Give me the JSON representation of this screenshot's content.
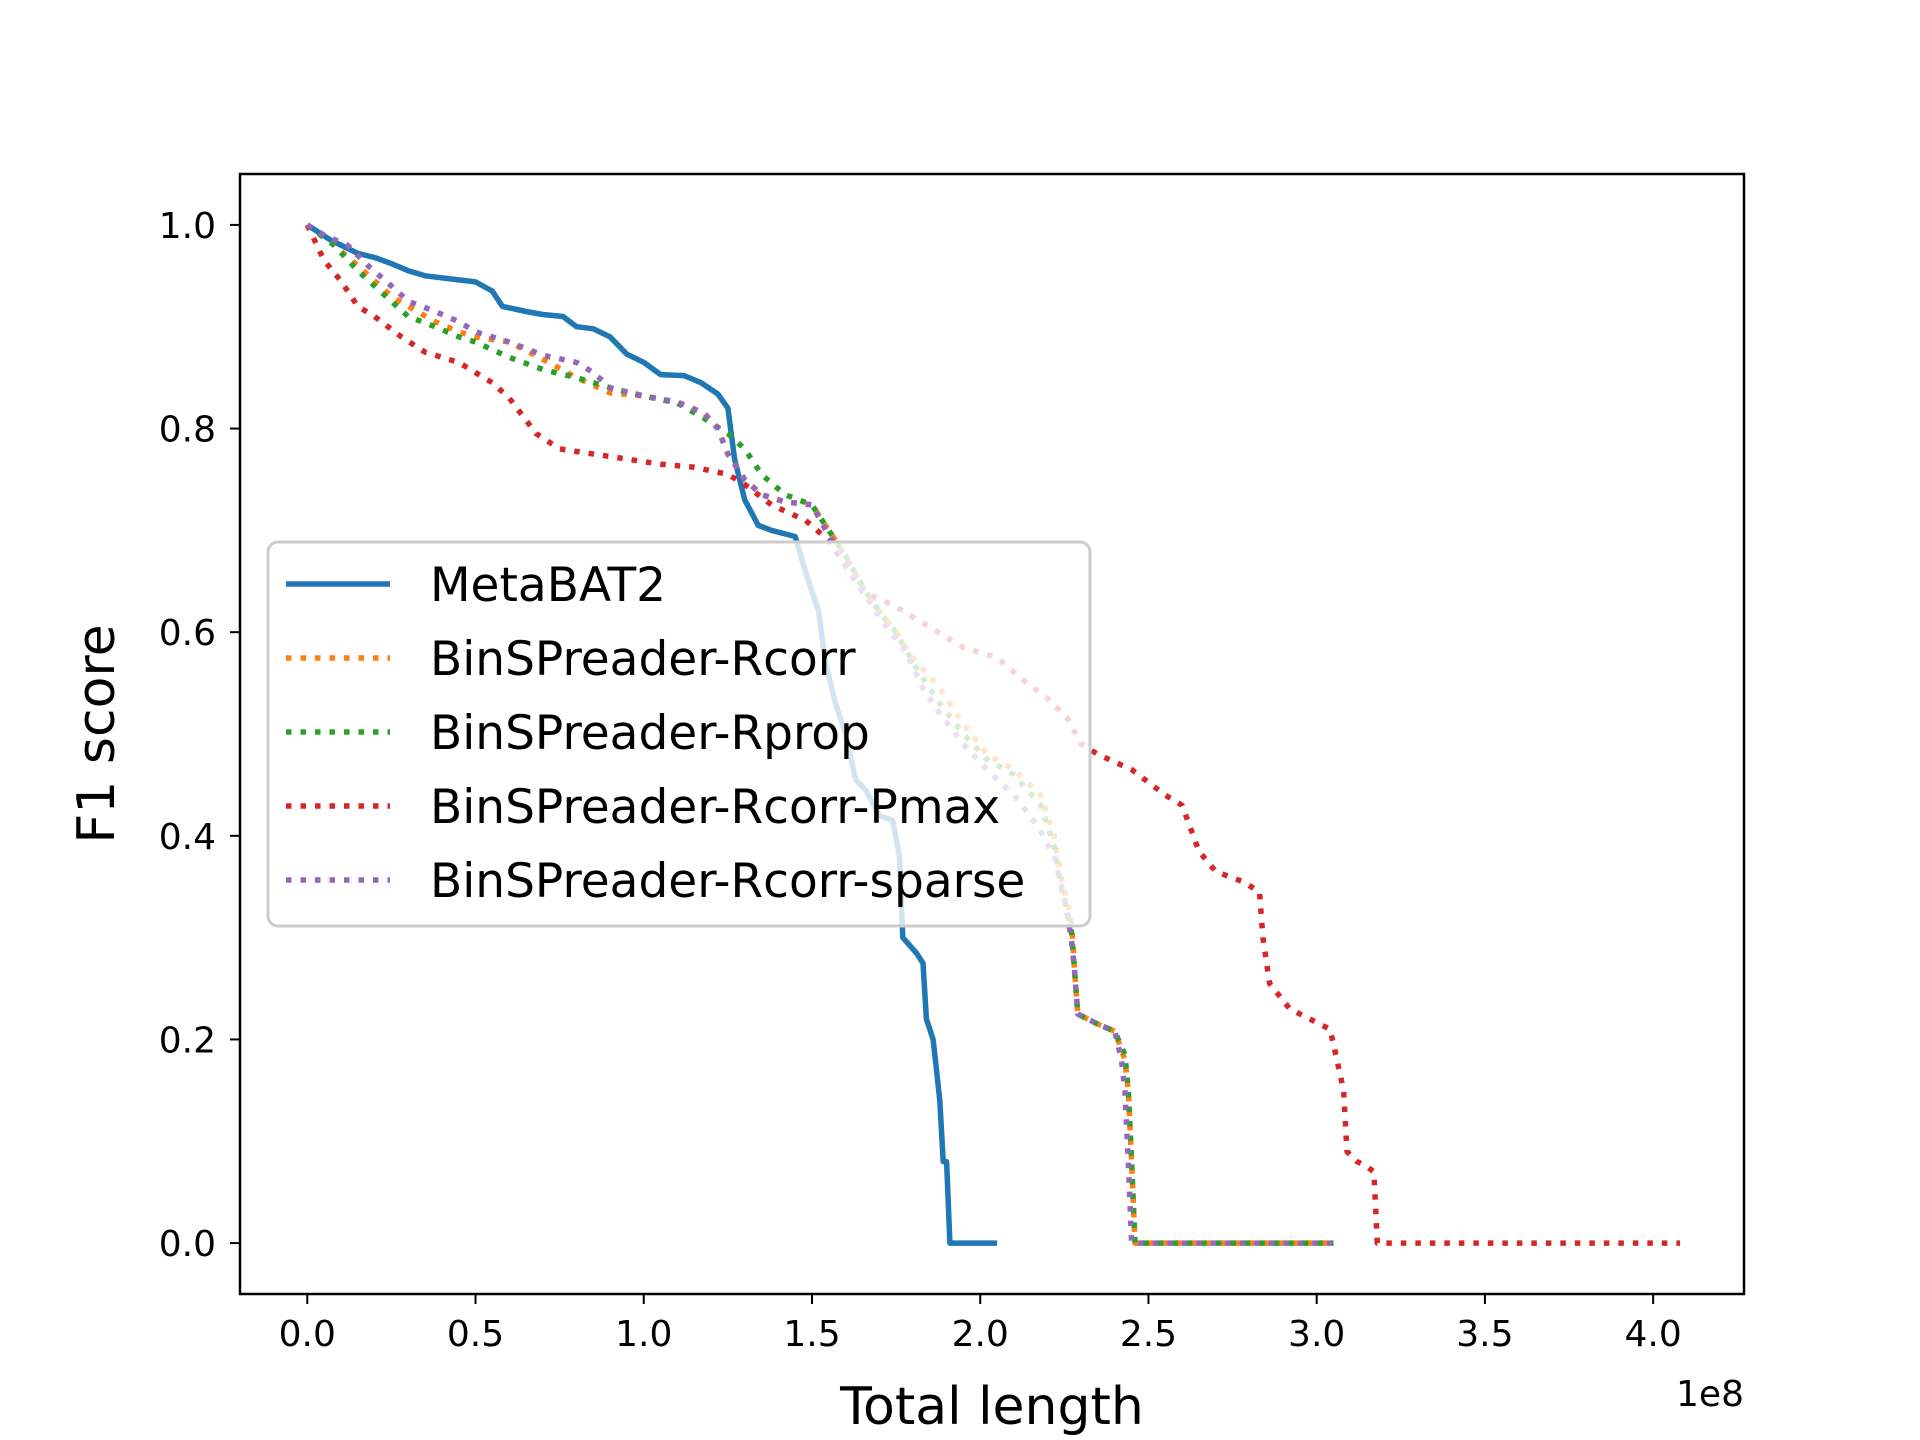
{
  "chart_data": {
    "type": "line",
    "title": "",
    "xlabel": "Total length",
    "ylabel": "F1 score",
    "x_offset_label": "1e8",
    "xlim": [
      -0.2,
      4.27
    ],
    "ylim": [
      -0.05,
      1.05
    ],
    "xticks": [
      0.0,
      0.5,
      1.0,
      1.5,
      2.0,
      2.5,
      3.0,
      3.5,
      4.0
    ],
    "xtick_labels": [
      "0.0",
      "0.5",
      "1.0",
      "1.5",
      "2.0",
      "2.5",
      "3.0",
      "3.5",
      "4.0"
    ],
    "yticks": [
      0.0,
      0.2,
      0.4,
      0.6,
      0.8,
      1.0
    ],
    "ytick_labels": [
      "0.0",
      "0.2",
      "0.4",
      "0.6",
      "0.8",
      "1.0"
    ],
    "grid": false,
    "legend_position": "center-left",
    "series": [
      {
        "name": "MetaBAT2",
        "color": "#1f77b4",
        "style": "solid",
        "points": [
          [
            0.0,
            1.0
          ],
          [
            0.07,
            0.985
          ],
          [
            0.15,
            0.972
          ],
          [
            0.2,
            0.968
          ],
          [
            0.25,
            0.962
          ],
          [
            0.3,
            0.955
          ],
          [
            0.35,
            0.95
          ],
          [
            0.45,
            0.946
          ],
          [
            0.5,
            0.944
          ],
          [
            0.55,
            0.935
          ],
          [
            0.58,
            0.92
          ],
          [
            0.65,
            0.915
          ],
          [
            0.7,
            0.912
          ],
          [
            0.76,
            0.91
          ],
          [
            0.8,
            0.9
          ],
          [
            0.85,
            0.898
          ],
          [
            0.9,
            0.89
          ],
          [
            0.95,
            0.873
          ],
          [
            1.0,
            0.865
          ],
          [
            1.05,
            0.853
          ],
          [
            1.12,
            0.852
          ],
          [
            1.17,
            0.845
          ],
          [
            1.22,
            0.834
          ],
          [
            1.25,
            0.82
          ],
          [
            1.27,
            0.77
          ],
          [
            1.3,
            0.73
          ],
          [
            1.34,
            0.705
          ],
          [
            1.38,
            0.7
          ],
          [
            1.45,
            0.694
          ],
          [
            1.48,
            0.66
          ],
          [
            1.52,
            0.62
          ],
          [
            1.54,
            0.57
          ],
          [
            1.57,
            0.53
          ],
          [
            1.6,
            0.5
          ],
          [
            1.63,
            0.455
          ],
          [
            1.66,
            0.445
          ],
          [
            1.7,
            0.42
          ],
          [
            1.74,
            0.415
          ],
          [
            1.76,
            0.38
          ],
          [
            1.77,
            0.3
          ],
          [
            1.81,
            0.285
          ],
          [
            1.83,
            0.275
          ],
          [
            1.84,
            0.22
          ],
          [
            1.85,
            0.21
          ],
          [
            1.86,
            0.2
          ],
          [
            1.87,
            0.17
          ],
          [
            1.88,
            0.14
          ],
          [
            1.89,
            0.08
          ],
          [
            1.9,
            0.08
          ],
          [
            1.91,
            0.0
          ],
          [
            2.05,
            0.0
          ]
        ]
      },
      {
        "name": "BinSPreader-Rcorr",
        "color": "#ff7f0e",
        "style": "dotted",
        "points": [
          [
            0.0,
            1.0
          ],
          [
            0.08,
            0.98
          ],
          [
            0.15,
            0.96
          ],
          [
            0.2,
            0.945
          ],
          [
            0.25,
            0.93
          ],
          [
            0.3,
            0.92
          ],
          [
            0.38,
            0.905
          ],
          [
            0.45,
            0.895
          ],
          [
            0.5,
            0.89
          ],
          [
            0.6,
            0.885
          ],
          [
            0.7,
            0.868
          ],
          [
            0.8,
            0.85
          ],
          [
            0.9,
            0.835
          ],
          [
            1.0,
            0.832
          ],
          [
            1.1,
            0.826
          ],
          [
            1.18,
            0.815
          ],
          [
            1.22,
            0.8
          ],
          [
            1.25,
            0.775
          ],
          [
            1.3,
            0.75
          ],
          [
            1.35,
            0.735
          ],
          [
            1.42,
            0.728
          ],
          [
            1.5,
            0.725
          ],
          [
            1.55,
            0.7
          ],
          [
            1.6,
            0.675
          ],
          [
            1.65,
            0.645
          ],
          [
            1.7,
            0.62
          ],
          [
            1.75,
            0.6
          ],
          [
            1.8,
            0.575
          ],
          [
            1.88,
            0.545
          ],
          [
            1.95,
            0.51
          ],
          [
            2.02,
            0.48
          ],
          [
            2.1,
            0.465
          ],
          [
            2.18,
            0.44
          ],
          [
            2.22,
            0.4
          ],
          [
            2.24,
            0.36
          ],
          [
            2.27,
            0.32
          ],
          [
            2.28,
            0.27
          ],
          [
            2.29,
            0.225
          ],
          [
            2.35,
            0.215
          ],
          [
            2.4,
            0.208
          ],
          [
            2.43,
            0.18
          ],
          [
            2.44,
            0.15
          ],
          [
            2.45,
            0.08
          ],
          [
            2.46,
            0.0
          ],
          [
            3.05,
            0.0
          ]
        ]
      },
      {
        "name": "BinSPreader-Rprop",
        "color": "#2ca02c",
        "style": "dotted",
        "points": [
          [
            0.0,
            1.0
          ],
          [
            0.08,
            0.98
          ],
          [
            0.15,
            0.955
          ],
          [
            0.2,
            0.94
          ],
          [
            0.25,
            0.925
          ],
          [
            0.3,
            0.91
          ],
          [
            0.38,
            0.9
          ],
          [
            0.45,
            0.89
          ],
          [
            0.5,
            0.885
          ],
          [
            0.6,
            0.87
          ],
          [
            0.7,
            0.858
          ],
          [
            0.8,
            0.85
          ],
          [
            0.9,
            0.84
          ],
          [
            1.0,
            0.832
          ],
          [
            1.1,
            0.825
          ],
          [
            1.18,
            0.81
          ],
          [
            1.25,
            0.795
          ],
          [
            1.3,
            0.78
          ],
          [
            1.35,
            0.755
          ],
          [
            1.42,
            0.735
          ],
          [
            1.5,
            0.725
          ],
          [
            1.55,
            0.7
          ],
          [
            1.6,
            0.675
          ],
          [
            1.65,
            0.645
          ],
          [
            1.7,
            0.62
          ],
          [
            1.75,
            0.6
          ],
          [
            1.8,
            0.57
          ],
          [
            1.88,
            0.53
          ],
          [
            1.95,
            0.5
          ],
          [
            2.02,
            0.475
          ],
          [
            2.1,
            0.46
          ],
          [
            2.18,
            0.43
          ],
          [
            2.22,
            0.39
          ],
          [
            2.24,
            0.35
          ],
          [
            2.27,
            0.31
          ],
          [
            2.28,
            0.27
          ],
          [
            2.29,
            0.225
          ],
          [
            2.35,
            0.215
          ],
          [
            2.4,
            0.208
          ],
          [
            2.43,
            0.185
          ],
          [
            2.44,
            0.15
          ],
          [
            2.45,
            0.08
          ],
          [
            2.46,
            0.0
          ],
          [
            3.05,
            0.0
          ]
        ]
      },
      {
        "name": "BinSPreader-Rcorr-Pmax",
        "color": "#d62728",
        "style": "dotted",
        "points": [
          [
            0.0,
            1.0
          ],
          [
            0.05,
            0.965
          ],
          [
            0.1,
            0.945
          ],
          [
            0.15,
            0.92
          ],
          [
            0.2,
            0.91
          ],
          [
            0.28,
            0.89
          ],
          [
            0.35,
            0.875
          ],
          [
            0.45,
            0.865
          ],
          [
            0.55,
            0.845
          ],
          [
            0.6,
            0.83
          ],
          [
            0.68,
            0.795
          ],
          [
            0.75,
            0.78
          ],
          [
            0.85,
            0.775
          ],
          [
            0.95,
            0.77
          ],
          [
            1.05,
            0.765
          ],
          [
            1.15,
            0.762
          ],
          [
            1.25,
            0.755
          ],
          [
            1.3,
            0.745
          ],
          [
            1.38,
            0.725
          ],
          [
            1.48,
            0.71
          ],
          [
            1.55,
            0.69
          ],
          [
            1.6,
            0.665
          ],
          [
            1.65,
            0.64
          ],
          [
            1.75,
            0.625
          ],
          [
            1.85,
            0.605
          ],
          [
            1.95,
            0.585
          ],
          [
            2.05,
            0.575
          ],
          [
            2.12,
            0.555
          ],
          [
            2.2,
            0.535
          ],
          [
            2.26,
            0.515
          ],
          [
            2.3,
            0.49
          ],
          [
            2.35,
            0.48
          ],
          [
            2.45,
            0.465
          ],
          [
            2.55,
            0.44
          ],
          [
            2.6,
            0.43
          ],
          [
            2.65,
            0.385
          ],
          [
            2.7,
            0.365
          ],
          [
            2.78,
            0.355
          ],
          [
            2.83,
            0.345
          ],
          [
            2.84,
            0.3
          ],
          [
            2.86,
            0.255
          ],
          [
            2.92,
            0.23
          ],
          [
            2.98,
            0.22
          ],
          [
            3.04,
            0.21
          ],
          [
            3.06,
            0.18
          ],
          [
            3.08,
            0.15
          ],
          [
            3.09,
            0.09
          ],
          [
            3.12,
            0.08
          ],
          [
            3.15,
            0.075
          ],
          [
            3.17,
            0.07
          ],
          [
            3.18,
            0.0
          ],
          [
            4.08,
            0.0
          ]
        ]
      },
      {
        "name": "BinSPreader-Rcorr-sparse",
        "color": "#9467bd",
        "style": "dotted",
        "points": [
          [
            0.0,
            1.0
          ],
          [
            0.05,
            0.99
          ],
          [
            0.12,
            0.98
          ],
          [
            0.18,
            0.96
          ],
          [
            0.25,
            0.94
          ],
          [
            0.3,
            0.925
          ],
          [
            0.38,
            0.915
          ],
          [
            0.45,
            0.905
          ],
          [
            0.5,
            0.895
          ],
          [
            0.6,
            0.885
          ],
          [
            0.7,
            0.872
          ],
          [
            0.8,
            0.865
          ],
          [
            0.85,
            0.855
          ],
          [
            0.9,
            0.84
          ],
          [
            1.0,
            0.832
          ],
          [
            1.1,
            0.826
          ],
          [
            1.18,
            0.815
          ],
          [
            1.22,
            0.8
          ],
          [
            1.25,
            0.775
          ],
          [
            1.3,
            0.75
          ],
          [
            1.35,
            0.735
          ],
          [
            1.42,
            0.728
          ],
          [
            1.5,
            0.725
          ],
          [
            1.55,
            0.695
          ],
          [
            1.6,
            0.67
          ],
          [
            1.65,
            0.64
          ],
          [
            1.7,
            0.615
          ],
          [
            1.78,
            0.58
          ],
          [
            1.83,
            0.545
          ],
          [
            1.88,
            0.52
          ],
          [
            1.95,
            0.49
          ],
          [
            2.02,
            0.465
          ],
          [
            2.1,
            0.44
          ],
          [
            2.17,
            0.41
          ],
          [
            2.22,
            0.38
          ],
          [
            2.25,
            0.34
          ],
          [
            2.27,
            0.3
          ],
          [
            2.28,
            0.27
          ],
          [
            2.29,
            0.225
          ],
          [
            2.35,
            0.215
          ],
          [
            2.4,
            0.208
          ],
          [
            2.42,
            0.18
          ],
          [
            2.43,
            0.15
          ],
          [
            2.44,
            0.08
          ],
          [
            2.45,
            0.0
          ],
          [
            3.05,
            0.0
          ]
        ]
      }
    ]
  }
}
